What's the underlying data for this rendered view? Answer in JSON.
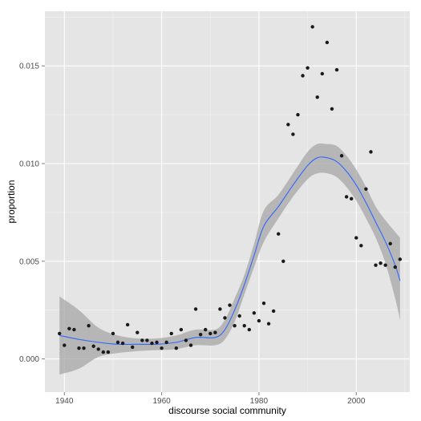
{
  "chart_data": {
    "type": "scatter",
    "title": "",
    "xlabel": "discourse social community",
    "ylabel": "proportion",
    "xlim": [
      1936,
      2011
    ],
    "ylim": [
      -0.0017,
      0.0178
    ],
    "x_ticks": [
      1940,
      1960,
      1980,
      2000
    ],
    "x_tick_labels": [
      "1940",
      "1960",
      "1980",
      "2000"
    ],
    "y_ticks": [
      0.0,
      0.005,
      0.01,
      0.015
    ],
    "y_tick_labels": [
      "0.000",
      "0.005",
      "0.010",
      "0.015"
    ],
    "grid": true,
    "legend": "none",
    "colors": {
      "panel_background": "#e5e5e5",
      "grid_major": "#ffffff",
      "grid_minor": "#f2f2f2",
      "points": "#1a1a1a",
      "smooth_line": "#3366ff",
      "ribbon": "#a6a6a6"
    },
    "points": [
      [
        1939,
        0.0013
      ],
      [
        1940,
        0.0007
      ],
      [
        1941,
        0.00155
      ],
      [
        1942,
        0.0015
      ],
      [
        1943,
        0.00055
      ],
      [
        1944,
        0.00055
      ],
      [
        1945,
        0.0017
      ],
      [
        1946,
        0.00065
      ],
      [
        1947,
        0.0005
      ],
      [
        1948,
        0.00035
      ],
      [
        1949,
        0.00035
      ],
      [
        1950,
        0.0013
      ],
      [
        1951,
        0.00085
      ],
      [
        1952,
        0.0008
      ],
      [
        1953,
        0.00175
      ],
      [
        1954,
        0.0006
      ],
      [
        1955,
        0.00135
      ],
      [
        1956,
        0.00095
      ],
      [
        1957,
        0.00095
      ],
      [
        1958,
        0.0008
      ],
      [
        1959,
        0.00085
      ],
      [
        1960,
        0.00055
      ],
      [
        1961,
        0.00085
      ],
      [
        1962,
        0.0013
      ],
      [
        1963,
        0.00055
      ],
      [
        1964,
        0.0015
      ],
      [
        1965,
        0.00095
      ],
      [
        1966,
        0.0007
      ],
      [
        1967,
        0.00255
      ],
      [
        1968,
        0.00125
      ],
      [
        1969,
        0.0015
      ],
      [
        1970,
        0.0013
      ],
      [
        1971,
        0.00135
      ],
      [
        1972,
        0.00255
      ],
      [
        1973,
        0.0021
      ],
      [
        1974,
        0.00275
      ],
      [
        1975,
        0.0017
      ],
      [
        1976,
        0.0022
      ],
      [
        1977,
        0.0017
      ],
      [
        1978,
        0.0015
      ],
      [
        1979,
        0.00235
      ],
      [
        1980,
        0.00195
      ],
      [
        1981,
        0.00285
      ],
      [
        1982,
        0.0018
      ],
      [
        1983,
        0.00245
      ],
      [
        1984,
        0.0064
      ],
      [
        1985,
        0.005
      ],
      [
        1986,
        0.012
      ],
      [
        1987,
        0.0115
      ],
      [
        1988,
        0.0125
      ],
      [
        1989,
        0.0145
      ],
      [
        1990,
        0.0149
      ],
      [
        1991,
        0.017
      ],
      [
        1992,
        0.0134
      ],
      [
        1993,
        0.0146
      ],
      [
        1994,
        0.0162
      ],
      [
        1995,
        0.0128
      ],
      [
        1996,
        0.0148
      ],
      [
        1997,
        0.0104
      ],
      [
        1998,
        0.0083
      ],
      [
        1999,
        0.0082
      ],
      [
        2000,
        0.0062
      ],
      [
        2001,
        0.0058
      ],
      [
        2002,
        0.0087
      ],
      [
        2003,
        0.0106
      ],
      [
        2004,
        0.0048
      ],
      [
        2005,
        0.0049
      ],
      [
        2006,
        0.0048
      ],
      [
        2007,
        0.0059
      ],
      [
        2008,
        0.0047
      ],
      [
        2009,
        0.0051
      ]
    ],
    "smooth": {
      "x": [
        1939,
        1943,
        1947,
        1951,
        1955,
        1959,
        1963,
        1967,
        1971,
        1973,
        1975,
        1977,
        1979,
        1981,
        1984,
        1987,
        1990,
        1992,
        1994,
        1996,
        1998,
        2000,
        2002,
        2004,
        2006,
        2008,
        2009
      ],
      "y": [
        0.0012,
        0.001,
        0.00085,
        0.00075,
        0.00075,
        0.00075,
        0.00085,
        0.0011,
        0.0011,
        0.0015,
        0.0025,
        0.0038,
        0.0053,
        0.0068,
        0.0078,
        0.0089,
        0.0099,
        0.0103,
        0.0103,
        0.0101,
        0.0096,
        0.0089,
        0.008,
        0.007,
        0.006,
        0.0048,
        0.004
      ],
      "lower": [
        -0.0008,
        -0.0005,
        0.0001,
        0.0003,
        0.0004,
        0.00045,
        0.0005,
        0.0007,
        0.0007,
        0.001,
        0.0019,
        0.0033,
        0.0047,
        0.006,
        0.0072,
        0.0083,
        0.0092,
        0.0095,
        0.0095,
        0.0093,
        0.0088,
        0.0081,
        0.0072,
        0.0062,
        0.0049,
        0.0031,
        0.002
      ],
      "upper": [
        0.0032,
        0.0025,
        0.0016,
        0.0012,
        0.00105,
        0.00105,
        0.0012,
        0.0015,
        0.0015,
        0.002,
        0.0031,
        0.0043,
        0.0059,
        0.0076,
        0.0084,
        0.0095,
        0.0106,
        0.011,
        0.011,
        0.0109,
        0.0104,
        0.0097,
        0.0088,
        0.0078,
        0.0071,
        0.0065,
        0.0062
      ]
    }
  }
}
